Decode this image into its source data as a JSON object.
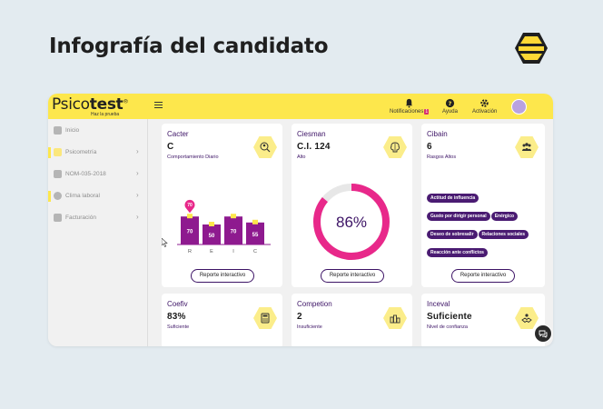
{
  "headline": "Infografía del candidato",
  "app": {
    "logo_light": "Psico",
    "logo_bold": "test",
    "logo_mark": "®",
    "tagline": "Haz la prueba",
    "nav": {
      "notifications_label": "Notificaciones",
      "notifications_count": "1",
      "help_label": "Ayuda",
      "activation_label": "Activación"
    },
    "sidebar": {
      "items": [
        {
          "label": "Inicio",
          "icon": "home-icon"
        },
        {
          "label": "Psicometría",
          "icon": "psychometry-icon"
        },
        {
          "label": "NOM-035-2018",
          "icon": "document-icon"
        },
        {
          "label": "Clima laboral",
          "icon": "smiley-icon"
        },
        {
          "label": "Facturación",
          "icon": "invoice-icon"
        }
      ]
    },
    "cards": {
      "cacter": {
        "title": "Cacter",
        "value": "C",
        "subtitle": "Comportamiento Diario",
        "icon": "behavior-icon",
        "button": "Reporte interactivo",
        "chart_data": {
          "type": "bar",
          "categories": [
            "R",
            "E",
            "I",
            "C"
          ],
          "values": [
            70,
            50,
            70,
            55
          ],
          "highlight": "70",
          "ylim": [
            0,
            100
          ]
        }
      },
      "ciesman": {
        "title": "Ciesman",
        "value": "C.I. 124",
        "subtitle": "Alto",
        "icon": "brain-icon",
        "button": "Reporte interactivo",
        "chart_data": {
          "type": "pie",
          "value_label": "86%",
          "values": [
            86,
            14
          ],
          "colors": [
            "#e8288a",
            "#e7e7e7"
          ]
        }
      },
      "cibain": {
        "title": "Cibain",
        "value": "6",
        "subtitle": "Rasgos Altos",
        "icon": "team-icon",
        "button": "Reporte interactivo",
        "tags": [
          "Actitud de influencia",
          "Gusto por dirigir personal",
          "Enérgico",
          "Deseo de sobresalir",
          "Relaciones sociales",
          "Reacción ante conflictos"
        ]
      },
      "coefiv": {
        "title": "Coefiv",
        "value": "83%",
        "subtitle": "Suficiente",
        "icon": "calculator-icon"
      },
      "competion": {
        "title": "Competion",
        "value": "2",
        "subtitle": "Insuficiente",
        "icon": "blocks-icon"
      },
      "inceval": {
        "title": "Inceval",
        "value": "Suficiente",
        "subtitle": "Nivel de confianza",
        "icon": "handshake-icon"
      }
    }
  },
  "colors": {
    "brand_yellow": "#fde74c",
    "brand_purple": "#3d1466",
    "bar_purple": "#8e1a8f",
    "accent_pink": "#e8288a"
  }
}
